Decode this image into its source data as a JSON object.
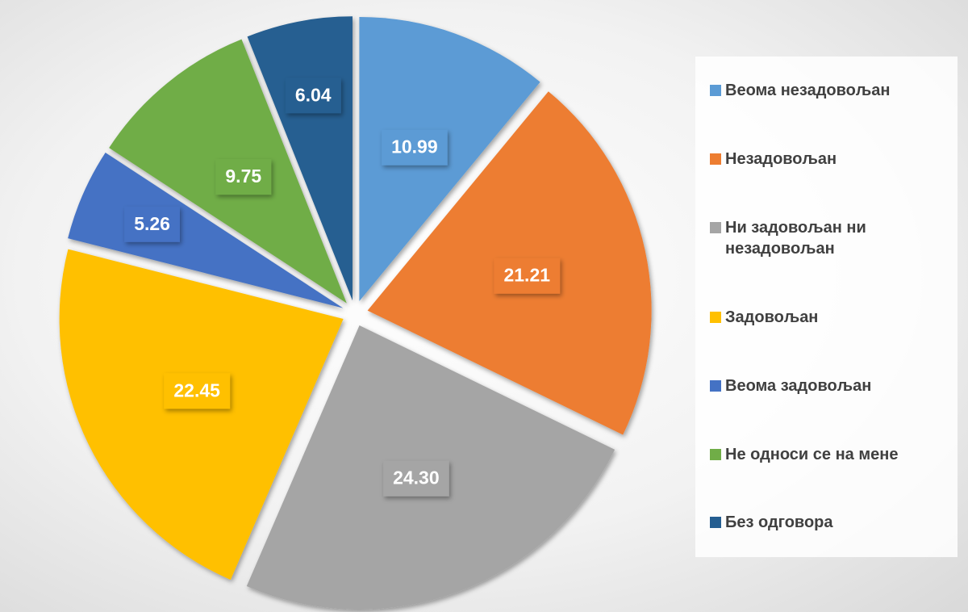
{
  "chart_data": {
    "type": "pie",
    "categories": [
      "Веома незадовољан",
      "Незадовољан",
      "Ни задовољан ни незадовољан",
      "Задовољан",
      "Веома задовољан",
      "Не односи се на мене",
      "Без одговора"
    ],
    "values": [
      10.99,
      21.21,
      24.3,
      22.45,
      5.26,
      9.75,
      6.04
    ],
    "value_labels": [
      "10.99",
      "21.21",
      "24.30",
      "22.45",
      "5.26",
      "9.75",
      "6.04"
    ],
    "colors": [
      "#5b9bd5",
      "#ed7d31",
      "#a5a5a5",
      "#ffc000",
      "#4472c4",
      "#70ad47",
      "#255e91"
    ],
    "legend": "right"
  }
}
